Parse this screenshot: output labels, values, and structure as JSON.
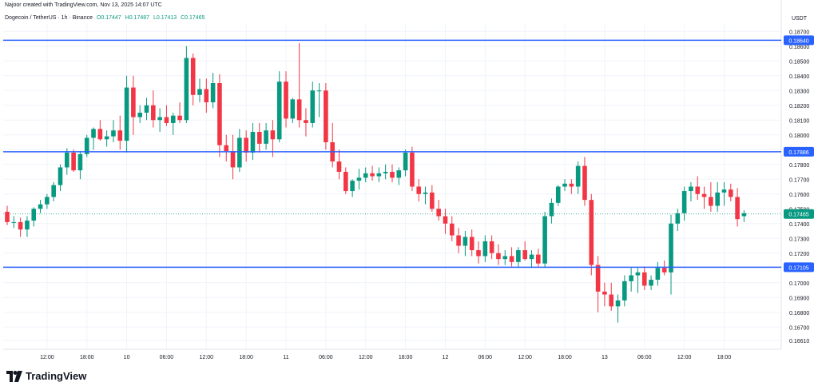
{
  "header": {
    "credit": "Najoor created with TradingView.com, Nov 13, 2025 14:07 UTC",
    "symbol": "Dogecoin / TetherUS · 1h · Binance",
    "open": "O0.17447",
    "high": "H0.17487",
    "low": "L0.17413",
    "close": "C0.17465"
  },
  "currency": "USDT",
  "logo": {
    "text": "TradingView"
  },
  "colors": {
    "up": "#089981",
    "down": "#f23645",
    "hline": "#2962ff",
    "lastline": "#089981"
  },
  "chart_data": {
    "type": "candlestick",
    "ylim": [
      0.1655,
      0.1875
    ],
    "y_ticks": [
      "0.18700",
      "0.18600",
      "0.18500",
      "0.18400",
      "0.18300",
      "0.18200",
      "0.18100",
      "0.18000",
      "0.17900",
      "0.17800",
      "0.17700",
      "0.17600",
      "0.17500",
      "0.17400",
      "0.17300",
      "0.17200",
      "0.17100",
      "0.17000",
      "0.16900",
      "0.16800",
      "0.16700",
      "0.16610"
    ],
    "x_ticks": [
      {
        "label": "12:00",
        "index": 6
      },
      {
        "label": "18:00",
        "index": 12
      },
      {
        "label": "10",
        "index": 18
      },
      {
        "label": "06:00",
        "index": 24
      },
      {
        "label": "12:00",
        "index": 30
      },
      {
        "label": "18:00",
        "index": 36
      },
      {
        "label": "11",
        "index": 42
      },
      {
        "label": "06:00",
        "index": 48
      },
      {
        "label": "12:00",
        "index": 54
      },
      {
        "label": "18:00",
        "index": 60
      },
      {
        "label": "12",
        "index": 66
      },
      {
        "label": "06:00",
        "index": 72
      },
      {
        "label": "12:00",
        "index": 78
      },
      {
        "label": "18:00",
        "index": 84
      },
      {
        "label": "13",
        "index": 90
      },
      {
        "label": "06:00",
        "index": 96
      },
      {
        "label": "12:00",
        "index": 102
      },
      {
        "label": "18:00",
        "index": 108
      }
    ],
    "horizontal_lines": [
      {
        "value": 0.1864,
        "label": "0.18640"
      },
      {
        "value": 0.17886,
        "label": "0.17886"
      },
      {
        "value": 0.17105,
        "label": "0.17105"
      }
    ],
    "last_price": {
      "value": 0.17465,
      "label": "0.17465"
    },
    "candles": [
      [
        0.1748,
        0.1752,
        0.1739,
        0.1741
      ],
      [
        0.1741,
        0.1745,
        0.1737,
        0.1741
      ],
      [
        0.1741,
        0.1744,
        0.1731,
        0.1736
      ],
      [
        0.1736,
        0.1745,
        0.1731,
        0.1742
      ],
      [
        0.1742,
        0.1751,
        0.1738,
        0.175
      ],
      [
        0.175,
        0.1756,
        0.1747,
        0.1753
      ],
      [
        0.1753,
        0.176,
        0.175,
        0.1758
      ],
      [
        0.1758,
        0.1768,
        0.1755,
        0.1766
      ],
      [
        0.1766,
        0.178,
        0.1762,
        0.1778
      ],
      [
        0.1778,
        0.1791,
        0.1773,
        0.1788
      ],
      [
        0.1788,
        0.179,
        0.1775,
        0.1776
      ],
      [
        0.1776,
        0.1789,
        0.177,
        0.1787
      ],
      [
        0.1787,
        0.18,
        0.1785,
        0.1798
      ],
      [
        0.1798,
        0.1805,
        0.179,
        0.1804
      ],
      [
        0.1804,
        0.181,
        0.1796,
        0.1797
      ],
      [
        0.1797,
        0.1803,
        0.1792,
        0.1799
      ],
      [
        0.1799,
        0.181,
        0.1795,
        0.1803
      ],
      [
        0.1803,
        0.1813,
        0.179,
        0.1796
      ],
      [
        0.1796,
        0.184,
        0.1788,
        0.1832
      ],
      [
        0.1832,
        0.184,
        0.18,
        0.1812
      ],
      [
        0.1812,
        0.182,
        0.1808,
        0.1815
      ],
      [
        0.1815,
        0.1825,
        0.181,
        0.182
      ],
      [
        0.182,
        0.183,
        0.1805,
        0.181
      ],
      [
        0.181,
        0.1818,
        0.1802,
        0.1812
      ],
      [
        0.1812,
        0.182,
        0.1806,
        0.1808
      ],
      [
        0.1808,
        0.1815,
        0.18,
        0.1813
      ],
      [
        0.1813,
        0.1822,
        0.1808,
        0.181
      ],
      [
        0.181,
        0.186,
        0.1808,
        0.1852
      ],
      [
        0.1852,
        0.1855,
        0.182,
        0.1827
      ],
      [
        0.1827,
        0.1838,
        0.1822,
        0.1831
      ],
      [
        0.1831,
        0.1838,
        0.1815,
        0.1822
      ],
      [
        0.1822,
        0.1842,
        0.1818,
        0.1835
      ],
      [
        0.1835,
        0.1841,
        0.1785,
        0.1793
      ],
      [
        0.1793,
        0.18,
        0.1782,
        0.1789
      ],
      [
        0.1789,
        0.18,
        0.177,
        0.1778
      ],
      [
        0.1778,
        0.1804,
        0.1775,
        0.1798
      ],
      [
        0.1798,
        0.1803,
        0.1782,
        0.1788
      ],
      [
        0.1788,
        0.1808,
        0.1783,
        0.1802
      ],
      [
        0.1802,
        0.1808,
        0.1788,
        0.1794
      ],
      [
        0.1794,
        0.1808,
        0.179,
        0.1803
      ],
      [
        0.1803,
        0.181,
        0.1785,
        0.1797
      ],
      [
        0.1797,
        0.1843,
        0.1795,
        0.1836
      ],
      [
        0.1836,
        0.1843,
        0.1805,
        0.1811
      ],
      [
        0.1811,
        0.1825,
        0.1808,
        0.1824
      ],
      [
        0.1824,
        0.1862,
        0.1805,
        0.181
      ],
      [
        0.181,
        0.1818,
        0.1799,
        0.1808
      ],
      [
        0.1808,
        0.1836,
        0.1805,
        0.183
      ],
      [
        0.183,
        0.1835,
        0.1812,
        0.183
      ],
      [
        0.183,
        0.1835,
        0.179,
        0.1795
      ],
      [
        0.1795,
        0.1808,
        0.1778,
        0.1782
      ],
      [
        0.1782,
        0.179,
        0.177,
        0.1775
      ],
      [
        0.1775,
        0.1778,
        0.176,
        0.1762
      ],
      [
        0.1762,
        0.177,
        0.1758,
        0.1769
      ],
      [
        0.1769,
        0.1777,
        0.1763,
        0.1771
      ],
      [
        0.1771,
        0.1778,
        0.1768,
        0.1774
      ],
      [
        0.1774,
        0.1779,
        0.1769,
        0.1772
      ],
      [
        0.1772,
        0.1778,
        0.1768,
        0.1774
      ],
      [
        0.1774,
        0.178,
        0.177,
        0.1775
      ],
      [
        0.1775,
        0.178,
        0.1768,
        0.1771
      ],
      [
        0.1771,
        0.1778,
        0.1766,
        0.1776
      ],
      [
        0.1776,
        0.179,
        0.1772,
        0.1788
      ],
      [
        0.1788,
        0.1792,
        0.1762,
        0.1765
      ],
      [
        0.1765,
        0.177,
        0.1755,
        0.176
      ],
      [
        0.176,
        0.1765,
        0.1753,
        0.1761
      ],
      [
        0.1761,
        0.1766,
        0.1748,
        0.175
      ],
      [
        0.175,
        0.1756,
        0.1742,
        0.1745
      ],
      [
        0.1745,
        0.175,
        0.1733,
        0.174
      ],
      [
        0.174,
        0.1745,
        0.1728,
        0.1732
      ],
      [
        0.1732,
        0.1737,
        0.172,
        0.1725
      ],
      [
        0.1725,
        0.1735,
        0.1718,
        0.1731
      ],
      [
        0.1731,
        0.1736,
        0.1718,
        0.1722
      ],
      [
        0.1722,
        0.1728,
        0.1713,
        0.1718
      ],
      [
        0.1718,
        0.1732,
        0.1714,
        0.1728
      ],
      [
        0.1728,
        0.1732,
        0.1716,
        0.172
      ],
      [
        0.172,
        0.1726,
        0.1712,
        0.1716
      ],
      [
        0.1716,
        0.1722,
        0.1712,
        0.1718
      ],
      [
        0.1718,
        0.1724,
        0.1711,
        0.1714
      ],
      [
        0.1714,
        0.1724,
        0.171,
        0.1722
      ],
      [
        0.1722,
        0.1728,
        0.1715,
        0.1716
      ],
      [
        0.1716,
        0.1722,
        0.171,
        0.1719
      ],
      [
        0.1719,
        0.1723,
        0.1711,
        0.1713
      ],
      [
        0.1713,
        0.1748,
        0.171,
        0.1745
      ],
      [
        0.1745,
        0.1757,
        0.174,
        0.1754
      ],
      [
        0.1754,
        0.1766,
        0.1752,
        0.1765
      ],
      [
        0.1765,
        0.177,
        0.1762,
        0.1767
      ],
      [
        0.1767,
        0.177,
        0.176,
        0.1765
      ],
      [
        0.1765,
        0.1782,
        0.176,
        0.1779
      ],
      [
        0.1779,
        0.1785,
        0.1752,
        0.1756
      ],
      [
        0.1756,
        0.176,
        0.1705,
        0.1712
      ],
      [
        0.1712,
        0.1718,
        0.168,
        0.1694
      ],
      [
        0.1694,
        0.17,
        0.1684,
        0.1692
      ],
      [
        0.1692,
        0.17,
        0.1681,
        0.1684
      ],
      [
        0.1684,
        0.1692,
        0.1673,
        0.1688
      ],
      [
        0.1688,
        0.1705,
        0.1684,
        0.1701
      ],
      [
        0.1701,
        0.171,
        0.1694,
        0.1705
      ],
      [
        0.1705,
        0.171,
        0.1693,
        0.1707
      ],
      [
        0.1707,
        0.1711,
        0.1695,
        0.1698
      ],
      [
        0.1698,
        0.1705,
        0.1695,
        0.1702
      ],
      [
        0.1702,
        0.1714,
        0.1698,
        0.171
      ],
      [
        0.171,
        0.1715,
        0.1705,
        0.1707
      ],
      [
        0.1707,
        0.1746,
        0.1692,
        0.174
      ],
      [
        0.174,
        0.175,
        0.1735,
        0.1747
      ],
      [
        0.1747,
        0.1765,
        0.1742,
        0.1762
      ],
      [
        0.1762,
        0.1768,
        0.1755,
        0.1765
      ],
      [
        0.1765,
        0.1772,
        0.1756,
        0.176
      ],
      [
        0.176,
        0.1765,
        0.175,
        0.1758
      ],
      [
        0.1758,
        0.1768,
        0.1748,
        0.1752
      ],
      [
        0.1752,
        0.1768,
        0.1748,
        0.1761
      ],
      [
        0.1761,
        0.1768,
        0.1752,
        0.1763
      ],
      [
        0.1763,
        0.1767,
        0.1755,
        0.1758
      ],
      [
        0.1758,
        0.1764,
        0.1738,
        0.1743
      ],
      [
        0.1745,
        0.1749,
        0.1741,
        0.1747
      ]
    ]
  }
}
